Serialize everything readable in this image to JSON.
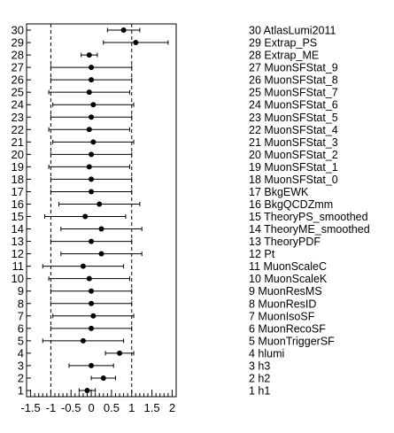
{
  "chart_data": {
    "type": "scatter",
    "orientation": "horizontal",
    "title": "",
    "xlabel": "",
    "ylabel": "",
    "xlim": [
      -1.6,
      2.1
    ],
    "x_ticks": [
      -1.5,
      -1,
      -0.5,
      0,
      0.5,
      1,
      1.5,
      2
    ],
    "x_tick_labels": [
      "-1.5",
      "-1",
      "-0.5",
      "0",
      "0.5",
      "1",
      "1.5",
      "2"
    ],
    "reference_lines": [
      -1,
      1
    ],
    "grid": false,
    "legend": "right",
    "points": [
      {
        "index": 1,
        "name": "h1",
        "value": -0.1,
        "err": 0.2
      },
      {
        "index": 2,
        "name": "h2",
        "value": 0.3,
        "err": 0.3
      },
      {
        "index": 3,
        "name": "h3",
        "value": 0.0,
        "err": 0.55
      },
      {
        "index": 4,
        "name": "hlumi",
        "value": 0.7,
        "err": 0.35
      },
      {
        "index": 5,
        "name": "MuonTriggerSF",
        "value": -0.2,
        "err": 1.0
      },
      {
        "index": 6,
        "name": "MuonRecoSF",
        "value": 0.0,
        "err": 1.0
      },
      {
        "index": 7,
        "name": "MuonIsoSF",
        "value": 0.05,
        "err": 1.0
      },
      {
        "index": 8,
        "name": "MuonResID",
        "value": 0.0,
        "err": 1.0
      },
      {
        "index": 9,
        "name": "MuonResMS",
        "value": 0.0,
        "err": 1.0
      },
      {
        "index": 10,
        "name": "MuonScaleK",
        "value": -0.05,
        "err": 1.0
      },
      {
        "index": 11,
        "name": "MuonScaleC",
        "value": -0.2,
        "err": 1.0
      },
      {
        "index": 12,
        "name": "Pt",
        "value": 0.25,
        "err": 1.0
      },
      {
        "index": 13,
        "name": "TheoryPDF",
        "value": 0.0,
        "err": 1.0
      },
      {
        "index": 14,
        "name": "TheoryME_smoothed",
        "value": 0.25,
        "err": 1.0
      },
      {
        "index": 15,
        "name": "TheoryPS_smoothed",
        "value": -0.15,
        "err": 1.0
      },
      {
        "index": 16,
        "name": "BkgQCDZmm",
        "value": 0.2,
        "err": 1.0
      },
      {
        "index": 17,
        "name": "BkgEWK",
        "value": 0.0,
        "err": 1.0
      },
      {
        "index": 18,
        "name": "MuonSFStat_0",
        "value": 0.0,
        "err": 1.0
      },
      {
        "index": 19,
        "name": "MuonSFStat_1",
        "value": -0.05,
        "err": 1.0
      },
      {
        "index": 20,
        "name": "MuonSFStat_2",
        "value": 0.0,
        "err": 1.0
      },
      {
        "index": 21,
        "name": "MuonSFStat_3",
        "value": 0.05,
        "err": 1.0
      },
      {
        "index": 22,
        "name": "MuonSFStat_4",
        "value": -0.05,
        "err": 1.0
      },
      {
        "index": 23,
        "name": "MuonSFStat_5",
        "value": 0.0,
        "err": 1.0
      },
      {
        "index": 24,
        "name": "MuonSFStat_6",
        "value": 0.05,
        "err": 1.0
      },
      {
        "index": 25,
        "name": "MuonSFStat_7",
        "value": -0.05,
        "err": 1.0
      },
      {
        "index": 26,
        "name": "MuonSFStat_8",
        "value": 0.0,
        "err": 1.0
      },
      {
        "index": 27,
        "name": "MuonSFStat_9",
        "value": 0.0,
        "err": 1.0
      },
      {
        "index": 28,
        "name": "Extrap_ME",
        "value": -0.05,
        "err": 0.2
      },
      {
        "index": 29,
        "name": "Extrap_PS",
        "value": 1.1,
        "err": 0.8
      },
      {
        "index": 30,
        "name": "AtlasLumi2011",
        "value": 0.8,
        "err": 0.4
      }
    ],
    "colors": {
      "marker": "#000000",
      "line": "#000000",
      "background": "#ffffff"
    }
  }
}
